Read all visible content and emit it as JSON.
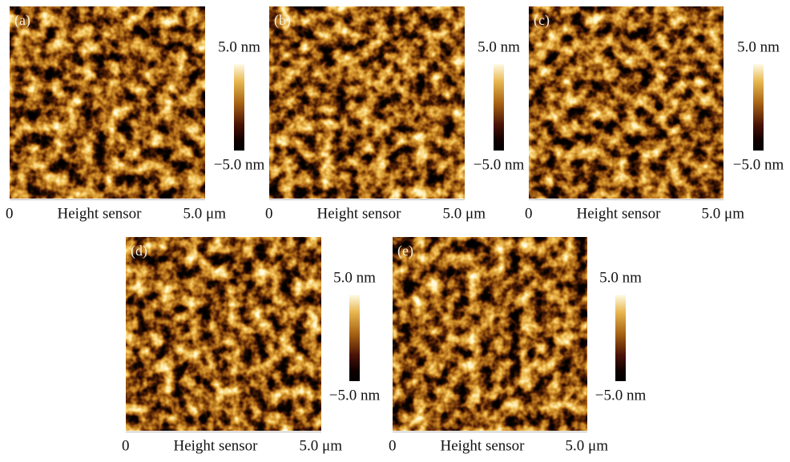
{
  "panels": [
    {
      "label": "(a)",
      "scale_max": "5.0 nm",
      "scale_min": "−5.0 nm",
      "x_start": "0",
      "x_label": "Height sensor",
      "x_end": "5.0 μm"
    },
    {
      "label": "(b)",
      "scale_max": "5.0 nm",
      "scale_min": "−5.0 nm",
      "x_start": "0",
      "x_label": "Height sensor",
      "x_end": "5.0 μm"
    },
    {
      "label": "(c)",
      "scale_max": "5.0 nm",
      "scale_min": "−5.0 nm",
      "x_start": "0",
      "x_label": "Height sensor",
      "x_end": "5.0 μm"
    },
    {
      "label": "(d)",
      "scale_max": "5.0 nm",
      "scale_min": "−5.0 nm",
      "x_start": "0",
      "x_label": "Height sensor",
      "x_end": "5.0 μm"
    },
    {
      "label": "(e)",
      "scale_max": "5.0 nm",
      "scale_min": "−5.0 nm",
      "x_start": "0",
      "x_label": "Height sensor",
      "x_end": "5.0 μm"
    }
  ]
}
